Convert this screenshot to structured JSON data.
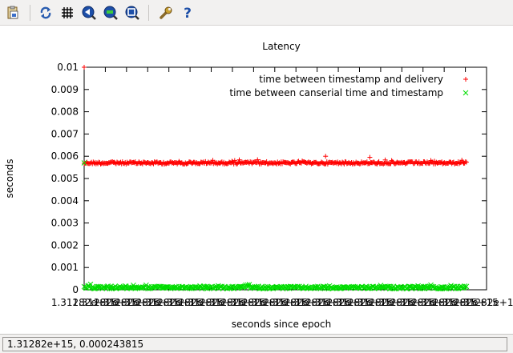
{
  "toolbar": {
    "buttons": [
      {
        "name": "copy-clipboard-button",
        "icon": "copy-clipboard-icon"
      },
      {
        "name": "replot-button",
        "icon": "replot-icon"
      },
      {
        "name": "grid-button",
        "icon": "grid-icon"
      },
      {
        "name": "previous-zoom-button",
        "icon": "zoom-previous-icon"
      },
      {
        "name": "next-zoom-button",
        "icon": "zoom-next-icon"
      },
      {
        "name": "autoscale-button",
        "icon": "autoscale-icon"
      },
      {
        "name": "options-button",
        "icon": "wrench-icon"
      },
      {
        "name": "help-button",
        "icon": "help-icon"
      }
    ]
  },
  "status": {
    "text": "1.31282e+15,  0.000243815"
  },
  "chart_data": {
    "type": "scatter",
    "title": "Latency",
    "xlabel": "seconds since epoch",
    "ylabel": "seconds",
    "ylim": [
      0,
      0.01
    ],
    "y_ticks": [
      "0",
      "0.001",
      "0.002",
      "0.003",
      "0.004",
      "0.005",
      "0.006",
      "0.007",
      "0.008",
      "0.009",
      "0.01"
    ],
    "x_ticks": [
      "1.31282e+15",
      "1.31282e+15",
      "1.31282e+15",
      "1.31282e+15",
      "1.31282e+15",
      "1.31282e+15",
      "1.31282e+15",
      "1.31282e+15",
      "1.31282e+15",
      "1.31282e+15",
      "1.31282e+15",
      "1.31282e+15",
      "1.31282e+15",
      "1.31282e+15",
      "1.31282e+15",
      "1.31282e+15",
      "1.31282e+15",
      "1.31282e+15",
      "1.31282e+15",
      "1.31282e+15"
    ],
    "x_range_fraction": [
      0,
      1
    ],
    "legend_position": "top-right",
    "grid": false,
    "series": [
      {
        "name": "time between timestamp and delivery",
        "marker": "+",
        "color": "#ff0000",
        "x_start_fraction": 0.0,
        "x_end_fraction": 0.95,
        "typical_value": 0.0057,
        "outliers": [
          {
            "x_fraction": 0.0,
            "y": 0.01
          },
          {
            "x_fraction": 0.6,
            "y": 0.006
          },
          {
            "x_fraction": 0.71,
            "y": 0.00595
          }
        ]
      },
      {
        "name": "time between canserial time and timestamp",
        "marker": "x",
        "color": "#00dd00",
        "x_start_fraction": 0.0,
        "x_end_fraction": 0.95,
        "typical_value": 0.0001,
        "outliers": [
          {
            "x_fraction": 0.0,
            "y": 0.0057
          }
        ]
      }
    ]
  }
}
